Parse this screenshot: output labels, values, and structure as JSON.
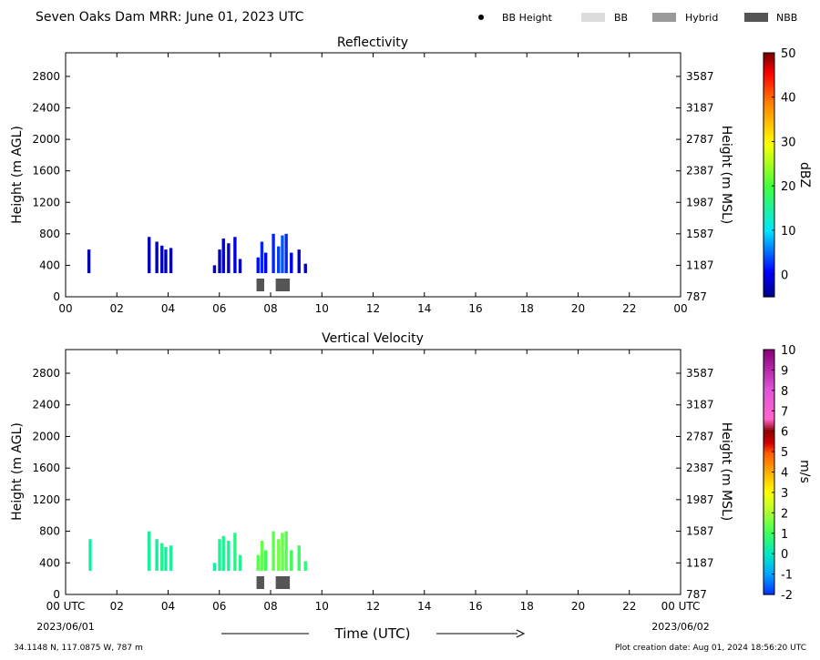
{
  "header": {
    "title": "Seven Oaks Dam MRR:  June 01, 2023 UTC",
    "legend": [
      {
        "kind": "marker",
        "label": "BB Height",
        "color": "#000000"
      },
      {
        "kind": "swatch",
        "label": "BB",
        "color": "#dcdcdc"
      },
      {
        "kind": "swatch",
        "label": "Hybrid",
        "color": "#9a9a9a"
      },
      {
        "kind": "swatch",
        "label": "NBB",
        "color": "#555555"
      }
    ]
  },
  "footer": {
    "location": "34.1148 N, 117.0875 W, 787 m",
    "creation": "Plot creation date: Aug 01, 2024 18:56:20 UTC",
    "time_axis_label": "Time (UTC)",
    "start_date": "2023/06/01",
    "end_date": "2023/06/02"
  },
  "chart_data": [
    {
      "type": "heatmap",
      "title": "Reflectivity",
      "xlabel": "",
      "ylabel_left": "Height (m AGL)",
      "ylabel_right": "Height (m MSL)",
      "xlim": [
        0,
        24
      ],
      "ylim": [
        0,
        3100
      ],
      "x_ticks": [
        "00",
        "02",
        "04",
        "06",
        "08",
        "10",
        "12",
        "14",
        "16",
        "18",
        "20",
        "22",
        "00"
      ],
      "y_ticks_left": [
        0,
        400,
        800,
        1200,
        1600,
        2000,
        2400,
        2800
      ],
      "y_ticks_right": [
        787,
        1187,
        1587,
        1987,
        2387,
        2787,
        3187,
        3587
      ],
      "colorbar": {
        "label": "dBZ",
        "range": [
          -5,
          50
        ],
        "ticks": [
          0,
          10,
          20,
          30,
          40,
          50
        ]
      },
      "segments": [
        {
          "x": 0.85,
          "top": 600,
          "value": -3
        },
        {
          "x": 3.2,
          "top": 760,
          "value": -3
        },
        {
          "x": 3.5,
          "top": 700,
          "value": -3
        },
        {
          "x": 3.7,
          "top": 650,
          "value": -2
        },
        {
          "x": 3.85,
          "top": 600,
          "value": -3
        },
        {
          "x": 4.05,
          "top": 620,
          "value": -3
        },
        {
          "x": 5.75,
          "top": 400,
          "value": -3
        },
        {
          "x": 5.95,
          "top": 600,
          "value": -3
        },
        {
          "x": 6.1,
          "top": 740,
          "value": -2
        },
        {
          "x": 6.3,
          "top": 680,
          "value": -2
        },
        {
          "x": 6.55,
          "top": 760,
          "value": -1
        },
        {
          "x": 6.75,
          "top": 480,
          "value": -2
        },
        {
          "x": 7.45,
          "top": 500,
          "value": 1
        },
        {
          "x": 7.6,
          "top": 700,
          "value": 2
        },
        {
          "x": 7.75,
          "top": 560,
          "value": 0
        },
        {
          "x": 8.05,
          "top": 800,
          "value": 2
        },
        {
          "x": 8.25,
          "top": 640,
          "value": 3
        },
        {
          "x": 8.4,
          "top": 780,
          "value": 4
        },
        {
          "x": 8.55,
          "top": 800,
          "value": 2
        },
        {
          "x": 8.75,
          "top": 560,
          "value": 0
        },
        {
          "x": 9.05,
          "top": 600,
          "value": -2
        },
        {
          "x": 9.3,
          "top": 420,
          "value": -3
        }
      ],
      "bb_markers": [
        {
          "start": 7.45,
          "end": 7.75,
          "type": "NBB"
        },
        {
          "start": 8.2,
          "end": 8.75,
          "type": "NBB"
        }
      ]
    },
    {
      "type": "heatmap",
      "title": "Vertical Velocity",
      "xlabel": "Time (UTC)",
      "ylabel_left": "Height (m AGL)",
      "ylabel_right": "Height (m MSL)",
      "xlim": [
        0,
        24
      ],
      "ylim": [
        0,
        3100
      ],
      "x_ticks": [
        "00 UTC",
        "02",
        "04",
        "06",
        "08",
        "10",
        "12",
        "14",
        "16",
        "18",
        "20",
        "22",
        "00 UTC"
      ],
      "y_ticks_left": [
        0,
        400,
        800,
        1200,
        1600,
        2000,
        2400,
        2800
      ],
      "y_ticks_right": [
        787,
        1187,
        1587,
        1987,
        2387,
        2787,
        3187,
        3587
      ],
      "colorbar": {
        "label": "m/s",
        "range": [
          -2,
          10
        ],
        "ticks": [
          -2,
          -1,
          0,
          1,
          2,
          3,
          4,
          5,
          6,
          7,
          8,
          9,
          10
        ]
      },
      "segments": [
        {
          "x": 0.9,
          "top": 700,
          "value": 0.3
        },
        {
          "x": 3.2,
          "top": 800,
          "value": 0.4
        },
        {
          "x": 3.5,
          "top": 700,
          "value": 0.3
        },
        {
          "x": 3.7,
          "top": 650,
          "value": 0.5
        },
        {
          "x": 3.85,
          "top": 600,
          "value": 0.3
        },
        {
          "x": 4.05,
          "top": 620,
          "value": 0.4
        },
        {
          "x": 5.75,
          "top": 400,
          "value": 0.3
        },
        {
          "x": 5.95,
          "top": 700,
          "value": 0.4
        },
        {
          "x": 6.1,
          "top": 740,
          "value": 0.5
        },
        {
          "x": 6.3,
          "top": 680,
          "value": 0.4
        },
        {
          "x": 6.55,
          "top": 780,
          "value": 0.6
        },
        {
          "x": 6.75,
          "top": 500,
          "value": 0.5
        },
        {
          "x": 7.45,
          "top": 500,
          "value": 1.2
        },
        {
          "x": 7.6,
          "top": 680,
          "value": 1.4
        },
        {
          "x": 7.75,
          "top": 560,
          "value": 1.0
        },
        {
          "x": 8.05,
          "top": 800,
          "value": 1.3
        },
        {
          "x": 8.25,
          "top": 700,
          "value": 1.5
        },
        {
          "x": 8.4,
          "top": 780,
          "value": 1.4
        },
        {
          "x": 8.55,
          "top": 800,
          "value": 1.2
        },
        {
          "x": 8.75,
          "top": 560,
          "value": 1.0
        },
        {
          "x": 9.05,
          "top": 620,
          "value": 0.9
        },
        {
          "x": 9.3,
          "top": 420,
          "value": 0.7
        }
      ],
      "bb_markers": [
        {
          "start": 7.45,
          "end": 7.75,
          "type": "NBB"
        },
        {
          "start": 8.2,
          "end": 8.75,
          "type": "NBB"
        }
      ]
    }
  ]
}
